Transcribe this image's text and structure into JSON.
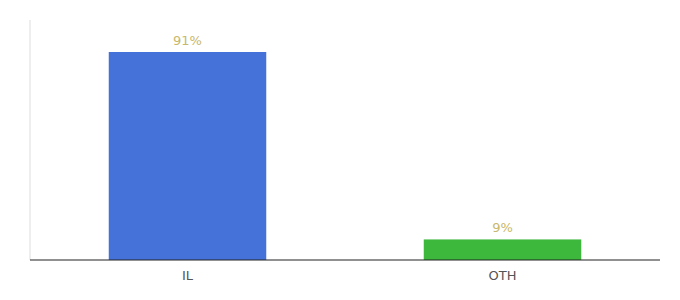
{
  "chart_data": {
    "type": "bar",
    "categories": [
      "IL",
      "OTH"
    ],
    "values": [
      91,
      9
    ],
    "value_labels": [
      "91%",
      "9%"
    ],
    "colors": [
      "#4472d9",
      "#3db83d"
    ],
    "ylim": [
      0,
      105
    ],
    "data_labels": true,
    "tick_labels": "x",
    "grid": false
  }
}
